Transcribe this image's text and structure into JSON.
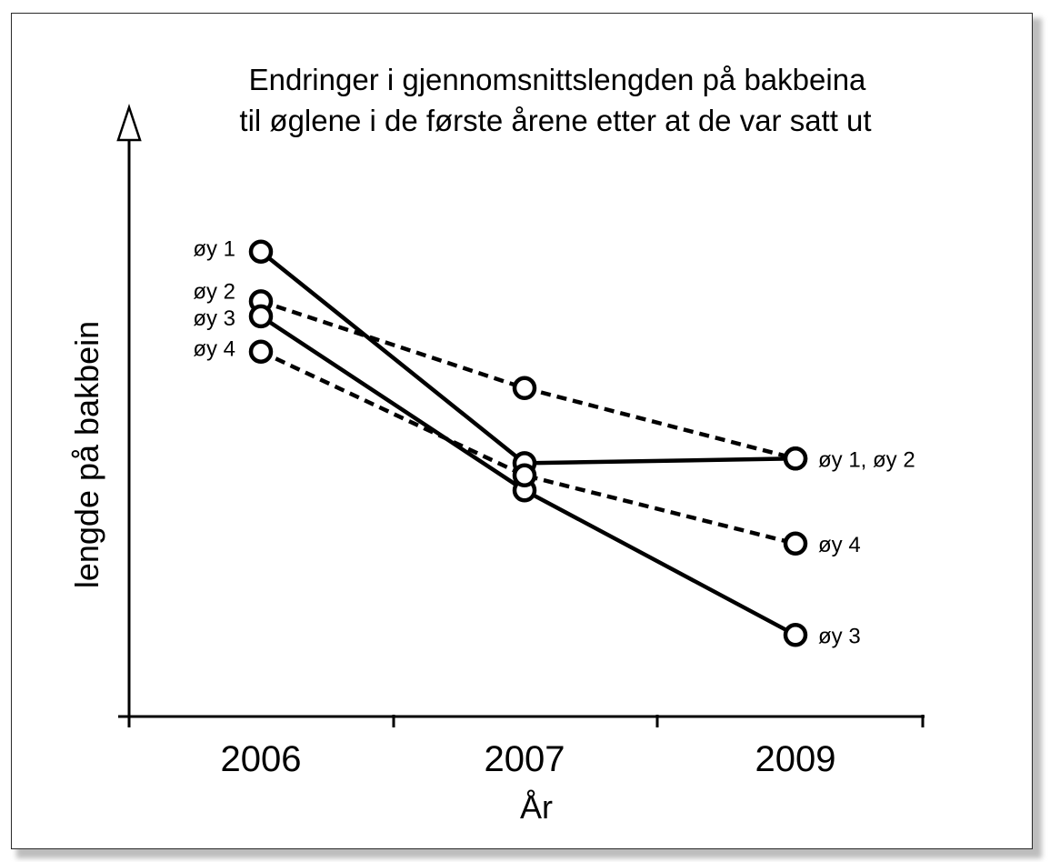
{
  "chart_data": {
    "type": "line",
    "title_lines": [
      "Endringer  i  gjennomsnittslengden  på  bakbeina",
      "til øglene i de første årene etter at de var satt ut"
    ],
    "xlabel": "År",
    "ylabel": "lengde på bakbein",
    "categories": [
      "2006",
      "2007",
      "2009"
    ],
    "y_ticks_shown": false,
    "grid": false,
    "legend": "none",
    "ylim": [
      0,
      100
    ],
    "series": [
      {
        "name": "øy 1",
        "style": "solid",
        "values": [
          80.4,
          43.8,
          44.6
        ]
      },
      {
        "name": "øy 2",
        "style": "dashed",
        "values": [
          71.8,
          56.8,
          44.6
        ]
      },
      {
        "name": "øy 3",
        "style": "solid",
        "values": [
          69.2,
          39.1,
          14.1
        ]
      },
      {
        "name": "øy 4",
        "style": "dashed",
        "values": [
          63.1,
          41.7,
          29.9
        ]
      }
    ],
    "point_labels_left": [
      {
        "text": "øy 1",
        "series": 0
      },
      {
        "text": "øy 2",
        "series": 1
      },
      {
        "text": "øy 3",
        "series": 2
      },
      {
        "text": "øy 4",
        "series": 3
      }
    ],
    "point_labels_right": [
      {
        "text": "øy 1, øy 2",
        "series": 0
      },
      {
        "text": "øy 4",
        "series": 3
      },
      {
        "text": "øy 3",
        "series": 2
      }
    ],
    "colors": {
      "line": "#000000",
      "marker_fill": "#ffffff",
      "frame": "#2a2a2a"
    }
  }
}
